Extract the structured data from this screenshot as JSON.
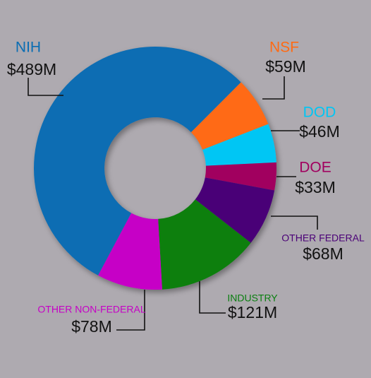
{
  "chart_data": {
    "type": "donut",
    "categories": [
      "NIH",
      "NSF",
      "DOD",
      "DOE",
      "OTHER FEDERAL",
      "INDUSTRY",
      "OTHER NON-FEDERAL"
    ],
    "values": [
      489,
      59,
      46,
      33,
      68,
      121,
      78
    ],
    "value_labels": [
      "$489M",
      "$59M",
      "$46M",
      "$33M",
      "$68M",
      "$121M",
      "$78M"
    ],
    "colors": [
      "#0a6db3",
      "#ff6a13",
      "#00c6f4",
      "#a1005f",
      "#4a0077",
      "#0a7f10",
      "#c600c6"
    ]
  }
}
